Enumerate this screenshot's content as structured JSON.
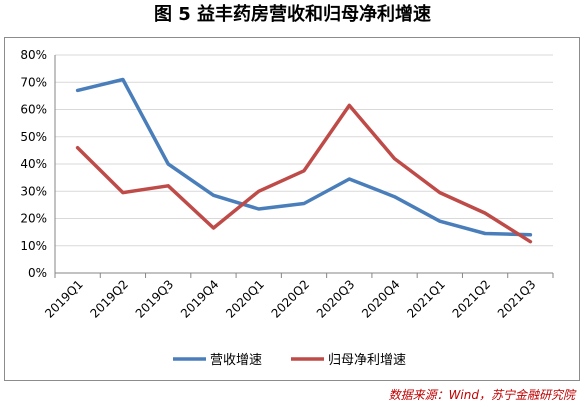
{
  "figure": {
    "title": "图 5  益丰药房营收和归母净利增速",
    "source": "数据来源：Wind，苏宁金融研究院"
  },
  "colors": {
    "revenue": "#4a7ebb",
    "profit": "#be4b48",
    "grid": "#d9d9d9",
    "axis": "#868686",
    "source": "#c00000"
  },
  "chart_data": {
    "type": "line",
    "categories": [
      "2019Q1",
      "2019Q2",
      "2019Q3",
      "2019Q4",
      "2020Q1",
      "2020Q2",
      "2020Q3",
      "2020Q4",
      "2021Q1",
      "2021Q2",
      "2021Q3"
    ],
    "series": [
      {
        "name": "营收增速",
        "values": [
          0.67,
          0.71,
          0.4,
          0.285,
          0.235,
          0.255,
          0.345,
          0.28,
          0.19,
          0.145,
          0.14
        ]
      },
      {
        "name": "归母净利增速",
        "values": [
          0.46,
          0.295,
          0.32,
          0.165,
          0.3,
          0.375,
          0.615,
          0.42,
          0.295,
          0.22,
          0.115
        ]
      }
    ],
    "yticks": [
      "0%",
      "10%",
      "20%",
      "30%",
      "40%",
      "50%",
      "60%",
      "70%",
      "80%"
    ],
    "ylim": [
      0,
      0.8
    ],
    "grid": true,
    "legend": "bottom"
  }
}
